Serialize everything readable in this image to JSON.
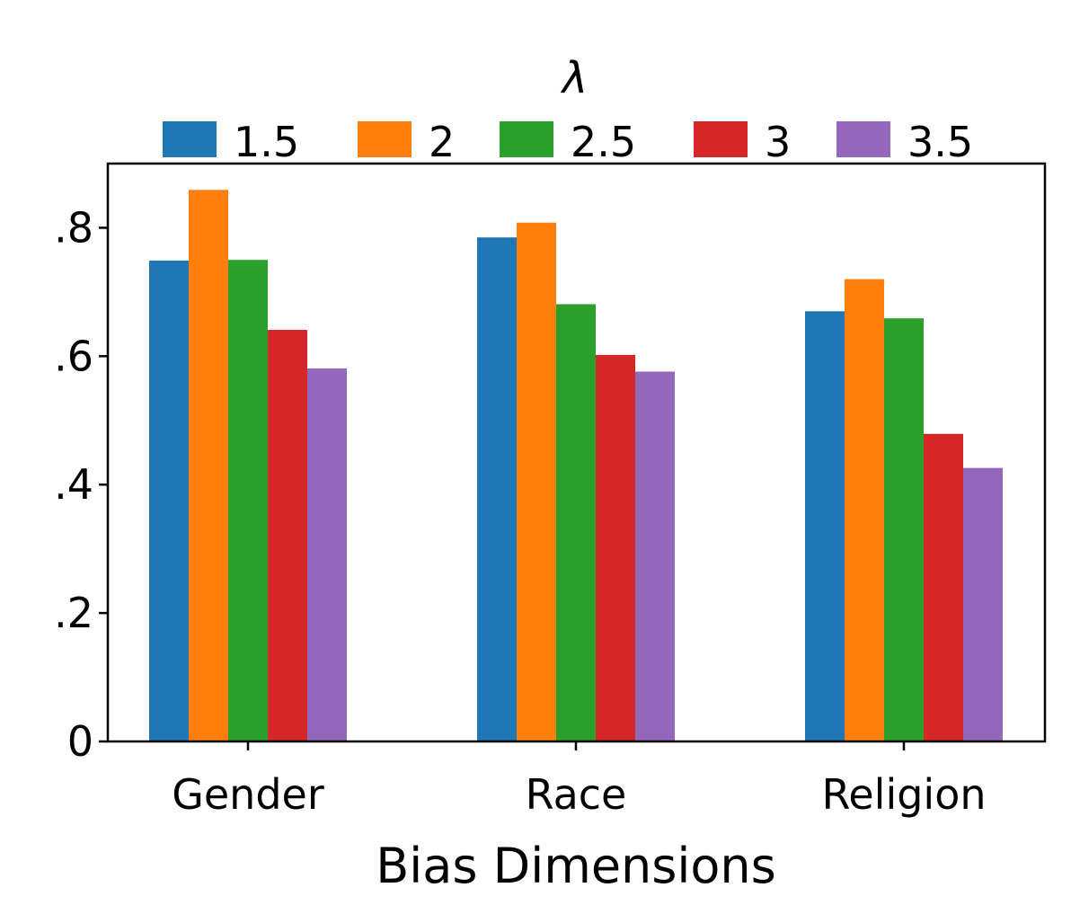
{
  "chart_data": {
    "type": "bar",
    "title": "",
    "xlabel": "Bias Dimensions",
    "ylabel": "",
    "ylim": [
      0,
      0.9
    ],
    "categories": [
      "Gender",
      "Race",
      "Religion"
    ],
    "yticks": [
      0,
      0.2,
      0.4,
      0.6,
      0.8
    ],
    "ytick_labels": [
      "0",
      ".2",
      ".4",
      ".6",
      ".8"
    ],
    "legend": {
      "title": "λ",
      "placement": "top-center, above plot"
    },
    "series": [
      {
        "name": "1.5",
        "color": "#1f77b4",
        "values": [
          0.749,
          0.785,
          0.67
        ]
      },
      {
        "name": "2",
        "color": "#ff7f0e",
        "values": [
          0.859,
          0.808,
          0.72
        ]
      },
      {
        "name": "2.5",
        "color": "#2ca02c",
        "values": [
          0.75,
          0.681,
          0.659
        ]
      },
      {
        "name": "3",
        "color": "#d62728",
        "values": [
          0.641,
          0.602,
          0.479
        ]
      },
      {
        "name": "3.5",
        "color": "#9467bd",
        "values": [
          0.581,
          0.576,
          0.426
        ]
      }
    ]
  }
}
